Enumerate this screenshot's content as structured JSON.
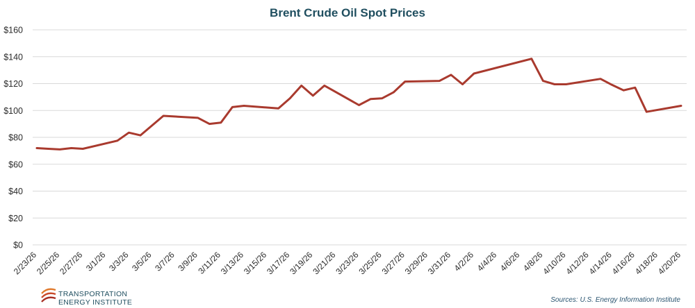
{
  "chart_data": {
    "type": "line",
    "title": "Brent Crude Oil Spot Prices",
    "xlabel": "",
    "ylabel": "",
    "ylim": [
      0,
      160
    ],
    "yticks": [
      0,
      20,
      40,
      60,
      80,
      100,
      120,
      140,
      160
    ],
    "ytick_prefix": "$",
    "grid": true,
    "color": "#a93a2e",
    "xtick_labels": [
      "2/23/26",
      "2/25/26",
      "2/27/26",
      "3/1/26",
      "3/3/26",
      "3/5/26",
      "3/7/26",
      "3/9/26",
      "3/11/26",
      "3/13/26",
      "3/15/26",
      "3/17/26",
      "3/19/26",
      "3/21/26",
      "3/23/26",
      "3/25/26",
      "3/27/26",
      "3/29/26",
      "3/31/26",
      "4/2/26",
      "4/4/26",
      "4/6/26",
      "4/8/26",
      "4/10/26",
      "4/12/26",
      "4/14/26",
      "4/16/26",
      "4/18/26",
      "4/20/26"
    ],
    "series": [
      {
        "name": "Brent Crude Oil Spot Price",
        "points": [
          {
            "date": "2/23/26",
            "value": 72
          },
          {
            "date": "2/24/26",
            "value": 71.5
          },
          {
            "date": "2/25/26",
            "value": 71
          },
          {
            "date": "2/26/26",
            "value": 72
          },
          {
            "date": "2/27/26",
            "value": 71.5
          },
          {
            "date": "3/2/26",
            "value": 77.5
          },
          {
            "date": "3/3/26",
            "value": 83.5
          },
          {
            "date": "3/4/26",
            "value": 81.5
          },
          {
            "date": "3/6/26",
            "value": 96
          },
          {
            "date": "3/9/26",
            "value": 94.5
          },
          {
            "date": "3/10/26",
            "value": 90
          },
          {
            "date": "3/11/26",
            "value": 91
          },
          {
            "date": "3/12/26",
            "value": 102.5
          },
          {
            "date": "3/13/26",
            "value": 103.5
          },
          {
            "date": "3/16/26",
            "value": 101.5
          },
          {
            "date": "3/17/26",
            "value": 109
          },
          {
            "date": "3/18/26",
            "value": 118.5
          },
          {
            "date": "3/19/26",
            "value": 111
          },
          {
            "date": "3/20/26",
            "value": 118.5
          },
          {
            "date": "3/23/26",
            "value": 104
          },
          {
            "date": "3/24/26",
            "value": 108.5
          },
          {
            "date": "3/25/26",
            "value": 109
          },
          {
            "date": "3/26/26",
            "value": 113.5
          },
          {
            "date": "3/27/26",
            "value": 121.5
          },
          {
            "date": "3/30/26",
            "value": 122
          },
          {
            "date": "3/31/26",
            "value": 126.5
          },
          {
            "date": "4/1/26",
            "value": 119.5
          },
          {
            "date": "4/2/26",
            "value": 127.5
          },
          {
            "date": "4/7/26",
            "value": 138.5
          },
          {
            "date": "4/8/26",
            "value": 122
          },
          {
            "date": "4/9/26",
            "value": 119.5
          },
          {
            "date": "4/10/26",
            "value": 119.5
          },
          {
            "date": "4/13/26",
            "value": 123.5
          },
          {
            "date": "4/14/26",
            "value": 119
          },
          {
            "date": "4/15/26",
            "value": 115
          },
          {
            "date": "4/16/26",
            "value": 117
          },
          {
            "date": "4/17/26",
            "value": 99
          },
          {
            "date": "4/20/26",
            "value": 103.5
          }
        ]
      }
    ]
  },
  "footer": {
    "logo_line1": "TRANSPORTATION",
    "logo_line2": "ENERGY INSTITUTE",
    "source": "Sources:  U.S. Energy Information Institute"
  }
}
